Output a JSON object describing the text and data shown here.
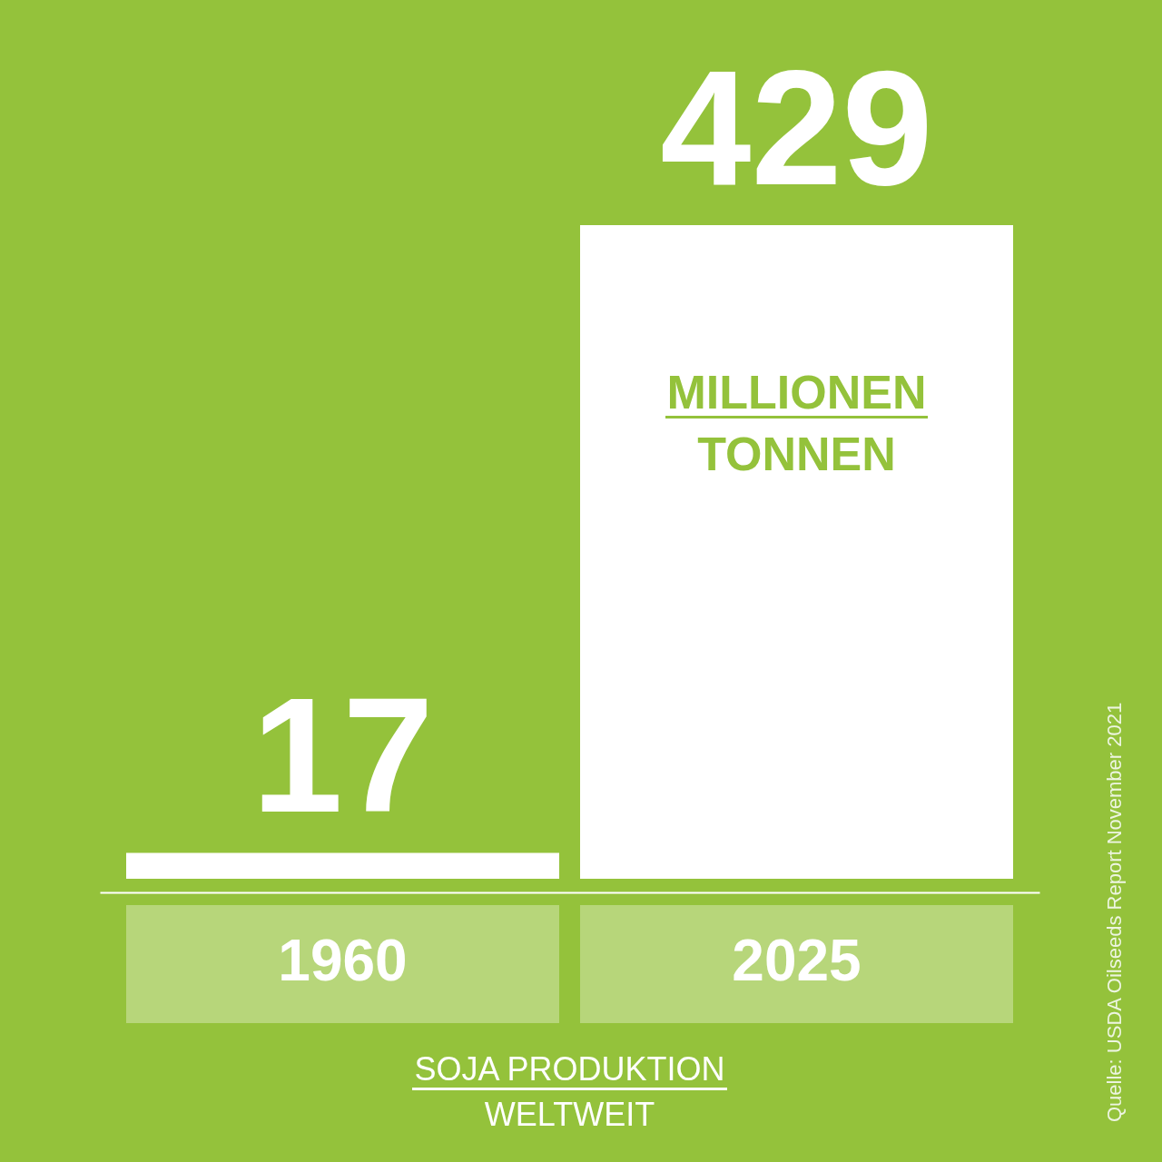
{
  "chart_data": {
    "type": "bar",
    "title": "SOJA PRODUKTION",
    "subtitle": "WELTWEIT",
    "categories": [
      "1960",
      "2025"
    ],
    "values": [
      17,
      429
    ],
    "color": "#ffffff",
    "data_labels": true,
    "annotations": [
      "MILLIONEN TONNEN",
      "Quelle: USDA Oilseeds Report November 2021"
    ]
  }
}
